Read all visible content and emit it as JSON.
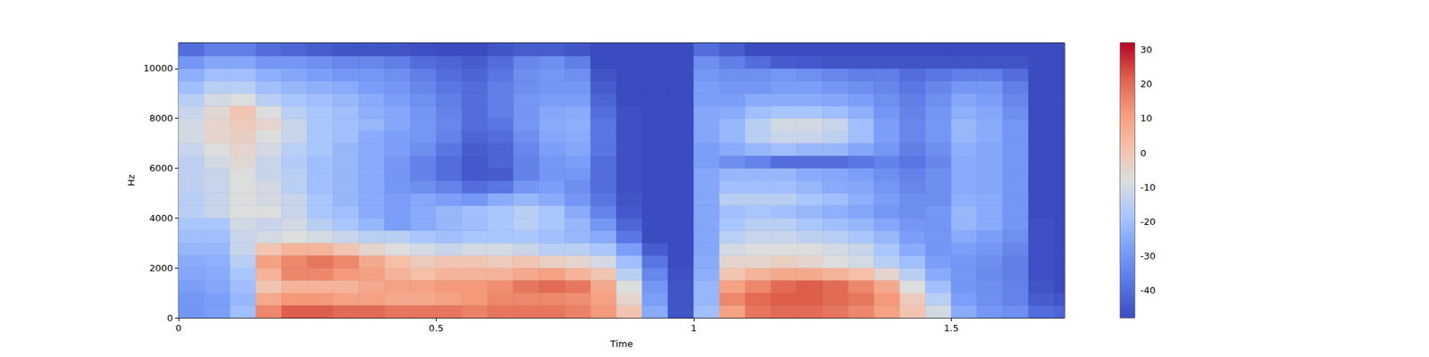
{
  "chart_data": {
    "type": "heatmap",
    "x_label": "Time",
    "y_label": "Hz",
    "x": [
      0.025,
      0.075,
      0.125,
      0.175,
      0.225,
      0.275,
      0.325,
      0.375,
      0.425,
      0.475,
      0.525,
      0.575,
      0.625,
      0.675,
      0.725,
      0.775,
      0.825,
      0.875,
      0.925,
      0.975,
      1.025,
      1.075,
      1.125,
      1.175,
      1.225,
      1.275,
      1.325,
      1.375,
      1.425,
      1.475,
      1.525,
      1.575,
      1.625,
      1.675,
      1.725
    ],
    "y": [
      250,
      750,
      1250,
      1750,
      2250,
      2750,
      3250,
      3750,
      4250,
      4750,
      5250,
      5750,
      6250,
      6750,
      7250,
      7750,
      8250,
      8750,
      9250,
      9750,
      10250,
      10750
    ],
    "cells": [
      [
        -30,
        -28,
        -20,
        15,
        22,
        22,
        20,
        20,
        18,
        18,
        18,
        16,
        18,
        18,
        18,
        16,
        12,
        0,
        -25,
        -46,
        -20,
        10,
        18,
        20,
        20,
        18,
        15,
        10,
        0,
        -10,
        -25,
        -30,
        -32,
        -40,
        -42
      ],
      [
        -30,
        -28,
        -22,
        8,
        12,
        12,
        10,
        10,
        8,
        8,
        10,
        12,
        15,
        15,
        15,
        14,
        10,
        -5,
        -28,
        -46,
        -22,
        15,
        20,
        22,
        22,
        20,
        18,
        12,
        -2,
        -15,
        -28,
        -32,
        -35,
        -44,
        -46
      ],
      [
        -28,
        -26,
        -20,
        0,
        5,
        5,
        5,
        8,
        10,
        10,
        12,
        12,
        14,
        18,
        20,
        18,
        8,
        -8,
        -30,
        -46,
        -22,
        10,
        15,
        20,
        22,
        20,
        15,
        8,
        -8,
        -20,
        -30,
        -32,
        -35,
        -46,
        -48
      ],
      [
        -26,
        -25,
        -18,
        5,
        15,
        15,
        12,
        10,
        5,
        2,
        5,
        5,
        5,
        8,
        10,
        5,
        0,
        -15,
        -34,
        -47,
        -24,
        0,
        5,
        8,
        8,
        5,
        2,
        -5,
        -15,
        -25,
        -30,
        -33,
        -36,
        -47,
        -48
      ],
      [
        -25,
        -24,
        -15,
        10,
        15,
        18,
        15,
        8,
        2,
        -2,
        0,
        0,
        -2,
        0,
        -3,
        -5,
        -10,
        -20,
        -38,
        -48,
        -25,
        -5,
        -5,
        -3,
        -5,
        -8,
        -10,
        -15,
        -20,
        -28,
        -30,
        -32,
        -36,
        -47,
        -48
      ],
      [
        -22,
        -22,
        -12,
        0,
        5,
        5,
        0,
        -5,
        -8,
        -10,
        -12,
        -10,
        -10,
        -12,
        -15,
        -15,
        -18,
        -28,
        -44,
        -48,
        -26,
        -10,
        -8,
        -8,
        -8,
        -10,
        -12,
        -18,
        -25,
        -30,
        -28,
        -30,
        -34,
        -47,
        -48
      ],
      [
        -20,
        -20,
        -12,
        -10,
        -8,
        -10,
        -12,
        -15,
        -15,
        -18,
        -20,
        -18,
        -18,
        -18,
        -20,
        -22,
        -25,
        -38,
        -48,
        -48,
        -26,
        -15,
        -12,
        -12,
        -14,
        -15,
        -18,
        -22,
        -28,
        -30,
        -25,
        -28,
        -32,
        -47,
        -48
      ],
      [
        -18,
        -18,
        -10,
        -12,
        -10,
        -15,
        -18,
        -22,
        -28,
        -25,
        -22,
        -20,
        -18,
        -15,
        -18,
        -22,
        -30,
        -42,
        -48,
        -48,
        -26,
        -18,
        -15,
        -15,
        -18,
        -20,
        -22,
        -26,
        -30,
        -30,
        -22,
        -25,
        -30,
        -47,
        -48
      ],
      [
        -15,
        -12,
        -8,
        -8,
        -12,
        -18,
        -20,
        -25,
        -28,
        -25,
        -22,
        -20,
        -18,
        -15,
        -18,
        -25,
        -35,
        -45,
        -48,
        -48,
        -26,
        -20,
        -18,
        -20,
        -22,
        -24,
        -26,
        -30,
        -32,
        -30,
        -22,
        -25,
        -30,
        -48,
        -48
      ],
      [
        -15,
        -12,
        -8,
        -10,
        -12,
        -18,
        -22,
        -25,
        -28,
        -26,
        -28,
        -30,
        -25,
        -22,
        -25,
        -30,
        -38,
        -46,
        -48,
        -48,
        -26,
        -15,
        -15,
        -15,
        -18,
        -20,
        -24,
        -28,
        -32,
        -32,
        -24,
        -25,
        -30,
        -48,
        -48
      ],
      [
        -14,
        -12,
        -8,
        -10,
        -15,
        -20,
        -22,
        -25,
        -30,
        -32,
        -35,
        -40,
        -38,
        -30,
        -28,
        -32,
        -40,
        -47,
        -48,
        -48,
        -26,
        -20,
        -20,
        -20,
        -22,
        -25,
        -26,
        -30,
        -34,
        -32,
        -25,
        -26,
        -30,
        -48,
        -48
      ],
      [
        -14,
        -12,
        -8,
        -12,
        -15,
        -20,
        -22,
        -25,
        -30,
        -35,
        -40,
        -45,
        -44,
        -35,
        -30,
        -30,
        -40,
        -47,
        -48,
        -48,
        -26,
        -22,
        -22,
        -22,
        -25,
        -26,
        -28,
        -32,
        -35,
        -32,
        -25,
        -26,
        -30,
        -48,
        -48
      ],
      [
        -14,
        -10,
        -6,
        -12,
        -16,
        -20,
        -22,
        -25,
        -30,
        -35,
        -40,
        -45,
        -42,
        -35,
        -30,
        -28,
        -40,
        -47,
        -48,
        -48,
        -28,
        -32,
        -35,
        -40,
        -40,
        -40,
        -38,
        -35,
        -38,
        -34,
        -25,
        -26,
        -30,
        -48,
        -48
      ],
      [
        -12,
        -8,
        -5,
        -10,
        -15,
        -18,
        -22,
        -25,
        -28,
        -32,
        -38,
        -44,
        -42,
        -34,
        -28,
        -26,
        -38,
        -47,
        -48,
        -48,
        -28,
        -25,
        -22,
        -20,
        -22,
        -22,
        -26,
        -30,
        -36,
        -32,
        -24,
        -26,
        -30,
        -48,
        -48
      ],
      [
        -10,
        -5,
        -3,
        -8,
        -12,
        -18,
        -20,
        -25,
        -28,
        -30,
        -35,
        -42,
        -40,
        -32,
        -26,
        -25,
        -38,
        -47,
        -48,
        -48,
        -26,
        -22,
        -15,
        -12,
        -12,
        -14,
        -20,
        -28,
        -34,
        -30,
        -22,
        -25,
        -30,
        -48,
        -48
      ],
      [
        -10,
        -5,
        -2,
        -5,
        -12,
        -18,
        -20,
        -22,
        -26,
        -30,
        -34,
        -40,
        -38,
        -30,
        -25,
        -24,
        -38,
        -47,
        -48,
        -48,
        -26,
        -22,
        -15,
        -10,
        -10,
        -12,
        -20,
        -28,
        -34,
        -30,
        -22,
        -25,
        -30,
        -48,
        -48
      ],
      [
        -12,
        -6,
        0,
        -8,
        -15,
        -18,
        -20,
        -24,
        -26,
        -30,
        -35,
        -40,
        -36,
        -30,
        -26,
        -25,
        -40,
        -47,
        -48,
        -48,
        -26,
        -25,
        -20,
        -18,
        -18,
        -20,
        -24,
        -30,
        -35,
        -30,
        -24,
        -26,
        -32,
        -48,
        -48
      ],
      [
        -15,
        -10,
        -8,
        -15,
        -18,
        -20,
        -22,
        -25,
        -28,
        -32,
        -36,
        -40,
        -36,
        -30,
        -28,
        -28,
        -42,
        -48,
        -48,
        -48,
        -28,
        -28,
        -25,
        -25,
        -25,
        -26,
        -28,
        -32,
        -36,
        -32,
        -26,
        -28,
        -34,
        -48,
        -48
      ],
      [
        -20,
        -15,
        -15,
        -20,
        -22,
        -24,
        -25,
        -28,
        -30,
        -34,
        -38,
        -40,
        -36,
        -32,
        -30,
        -30,
        -44,
        -48,
        -48,
        -48,
        -28,
        -30,
        -30,
        -28,
        -28,
        -30,
        -32,
        -34,
        -38,
        -34,
        -30,
        -30,
        -36,
        -48,
        -48
      ],
      [
        -24,
        -20,
        -20,
        -24,
        -26,
        -28,
        -30,
        -30,
        -32,
        -36,
        -40,
        -42,
        -38,
        -32,
        -30,
        -32,
        -46,
        -48,
        -48,
        -48,
        -30,
        -32,
        -32,
        -30,
        -32,
        -34,
        -36,
        -36,
        -40,
        -38,
        -36,
        -36,
        -40,
        -48,
        -48
      ],
      [
        -30,
        -26,
        -26,
        -30,
        -30,
        -32,
        -34,
        -34,
        -36,
        -40,
        -42,
        -44,
        -40,
        -34,
        -32,
        -36,
        -48,
        -48,
        -48,
        -48,
        -32,
        -36,
        -40,
        -44,
        -45,
        -46,
        -46,
        -46,
        -46,
        -46,
        -46,
        -46,
        -46,
        -48,
        -48
      ],
      [
        -40,
        -36,
        -36,
        -40,
        -42,
        -44,
        -46,
        -46,
        -46,
        -47,
        -48,
        -48,
        -46,
        -44,
        -44,
        -46,
        -48,
        -48,
        -48,
        -48,
        -40,
        -44,
        -48,
        -48,
        -48,
        -48,
        -48,
        -48,
        -48,
        -48,
        -48,
        -48,
        -48,
        -48,
        -48
      ]
    ],
    "xlim": [
      0,
      1.72
    ],
    "ylim": [
      0,
      11025
    ],
    "xticks": [
      0,
      0.5,
      1,
      1.5
    ],
    "yticks": [
      0,
      2000,
      4000,
      6000,
      8000,
      10000
    ],
    "colorbar_lim": [
      -48,
      32
    ],
    "colorbar_ticks": [
      -40,
      -30,
      -20,
      -10,
      0,
      10,
      20,
      30
    ]
  }
}
